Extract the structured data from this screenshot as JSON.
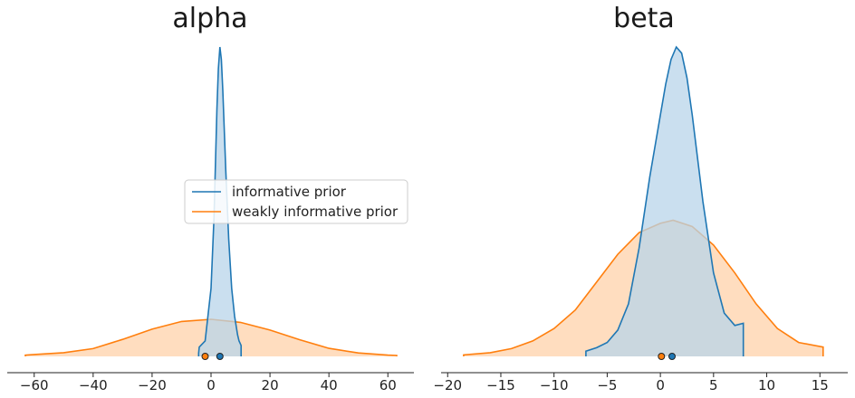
{
  "chart_data": [
    {
      "type": "area",
      "title": "alpha",
      "xlabel": "",
      "ylabel": "",
      "xlim": [
        -63,
        63
      ],
      "xticks": [
        -60,
        -40,
        -20,
        0,
        20,
        40,
        60
      ],
      "grid": false,
      "legend": {
        "placement": "center-right"
      },
      "series": [
        {
          "name": "informative prior",
          "color": "#1f77b4",
          "fill_color": "#b8d4ea",
          "point_estimate": 3,
          "x": [
            -4.2,
            -4.0,
            -2,
            0,
            1,
            2,
            2.5,
            3,
            3.5,
            4,
            5,
            6,
            7,
            8,
            9,
            9.5,
            10,
            10.2
          ],
          "y": [
            0.01,
            0.03,
            0.05,
            0.22,
            0.45,
            0.8,
            0.93,
            1.0,
            0.96,
            0.86,
            0.6,
            0.38,
            0.22,
            0.13,
            0.07,
            0.05,
            0.04,
            0.035
          ]
        },
        {
          "name": "weakly informative prior",
          "color": "#ff7f0e",
          "fill_color": "#ffd2aa",
          "point_estimate": -2,
          "x": [
            -63,
            -60,
            -50,
            -40,
            -30,
            -20,
            -10,
            0,
            10,
            20,
            30,
            40,
            50,
            60,
            63
          ],
          "y": [
            0.004,
            0.006,
            0.012,
            0.025,
            0.055,
            0.088,
            0.113,
            0.12,
            0.11,
            0.085,
            0.054,
            0.026,
            0.011,
            0.004,
            0.003
          ]
        }
      ]
    },
    {
      "type": "area",
      "title": "beta",
      "xlabel": "",
      "ylabel": "",
      "xlim": [
        -19,
        16
      ],
      "xticks": [
        -20,
        -15,
        -10,
        -5,
        0,
        5,
        10,
        15
      ],
      "grid": false,
      "series": [
        {
          "name": "informative prior",
          "color": "#1f77b4",
          "fill_color": "#b8d4ea",
          "point_estimate": 1.1,
          "x": [
            -7,
            -6,
            -5,
            -4,
            -3,
            -2,
            -1,
            0,
            0.5,
            1,
            1.5,
            2,
            2.5,
            3,
            4,
            5,
            6,
            7,
            7.8
          ],
          "y": [
            0.017,
            0.028,
            0.045,
            0.085,
            0.17,
            0.35,
            0.58,
            0.78,
            0.88,
            0.96,
            1.0,
            0.98,
            0.9,
            0.78,
            0.5,
            0.27,
            0.14,
            0.1,
            0.107
          ]
        },
        {
          "name": "weakly informative prior",
          "color": "#ff7f0e",
          "fill_color": "#ffd2aa",
          "point_estimate": 0.1,
          "x": [
            -18.5,
            -16,
            -14,
            -12,
            -10,
            -8,
            -6,
            -4,
            -2,
            0,
            1.2,
            3,
            5,
            7,
            9,
            11,
            13,
            15.3
          ],
          "y": [
            0.005,
            0.012,
            0.025,
            0.05,
            0.09,
            0.15,
            0.24,
            0.33,
            0.4,
            0.43,
            0.44,
            0.42,
            0.36,
            0.27,
            0.17,
            0.09,
            0.045,
            0.03
          ]
        }
      ]
    }
  ],
  "legend": {
    "items": [
      {
        "label": "informative prior",
        "color": "#1f77b4"
      },
      {
        "label": "weakly informative prior",
        "color": "#ff7f0e"
      }
    ]
  }
}
